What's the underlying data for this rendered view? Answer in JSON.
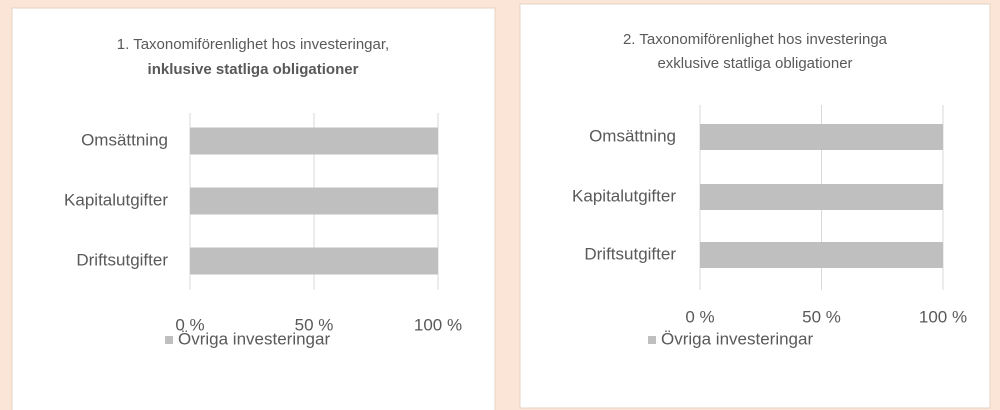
{
  "chart_data": [
    {
      "type": "bar",
      "title": "1. Taxonomiförenlighet hos investeringar,",
      "subtitle": "inklusive statliga obligationer",
      "categories": [
        "Omsättning",
        "Kapitalutgifter",
        "Driftsutgifter"
      ],
      "series": [
        {
          "name": "Övriga investeringar",
          "color": "#bfbfbf",
          "values": [
            100,
            100,
            100
          ]
        }
      ],
      "xlim": [
        0,
        100
      ],
      "xticks": [
        {
          "value": 0,
          "label": "0 %"
        },
        {
          "value": 50,
          "label": "50 %"
        },
        {
          "value": 100,
          "label": "100 %"
        }
      ],
      "grid": true,
      "legend": "bottom"
    },
    {
      "type": "bar",
      "title": "2. Taxonomiförenlighet hos investeringa",
      "subtitle": "exklusive statliga obligationer",
      "categories": [
        "Omsättning",
        "Kapitalutgifter",
        "Driftsutgifter"
      ],
      "series": [
        {
          "name": "Övriga investeringar",
          "color": "#bfbfbf",
          "values": [
            100,
            100,
            100
          ]
        }
      ],
      "xlim": [
        0,
        100
      ],
      "xticks": [
        {
          "value": 0,
          "label": "0 %"
        },
        {
          "value": 50,
          "label": "50 %"
        },
        {
          "value": 100,
          "label": "100 %"
        }
      ],
      "grid": true,
      "legend": "bottom"
    }
  ]
}
